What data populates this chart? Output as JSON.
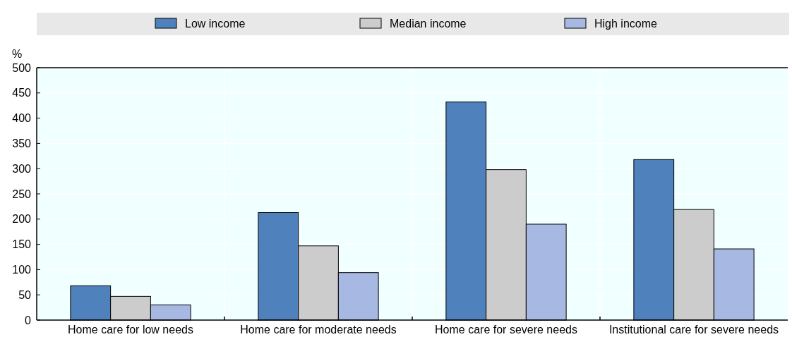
{
  "chart_data": {
    "type": "bar",
    "ylabel": "%",
    "categories": [
      "Home care for low needs",
      "Home care for moderate needs",
      "Home care for severe needs",
      "Institutional care for severe needs"
    ],
    "series": [
      {
        "name": "Low income",
        "color": "#4f81bd",
        "values": [
          68,
          213,
          432,
          318
        ]
      },
      {
        "name": "Median income",
        "color": "#cccccc",
        "values": [
          47,
          147,
          298,
          219
        ]
      },
      {
        "name": "High income",
        "color": "#a7b8e2",
        "values": [
          30,
          94,
          190,
          141
        ]
      }
    ],
    "ylim": [
      0,
      500
    ],
    "yticks": [
      0,
      50,
      100,
      150,
      200,
      250,
      300,
      350,
      400,
      450,
      500
    ],
    "grid": true,
    "legend": "top"
  }
}
